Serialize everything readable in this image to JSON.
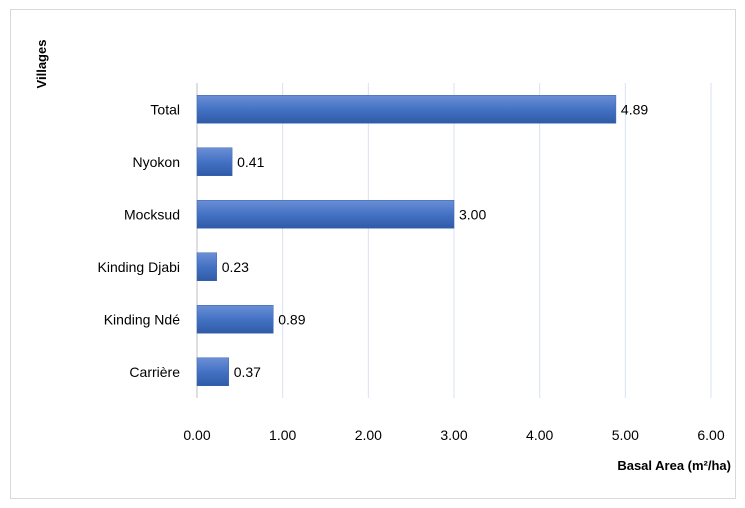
{
  "chart_data": {
    "type": "bar",
    "orientation": "horizontal",
    "categories": [
      "Total",
      "Nyokon",
      "Mocksud",
      "Kinding Djabi",
      "Kinding Ndé",
      "Carrière"
    ],
    "values": [
      4.89,
      0.41,
      3.0,
      0.23,
      0.89,
      0.37
    ],
    "value_labels": [
      "4.89",
      "0.41",
      "3.00",
      "0.23",
      "0.89",
      "0.37"
    ],
    "x_ticks": [
      "0.00",
      "1.00",
      "2.00",
      "3.00",
      "4.00",
      "5.00",
      "6.00"
    ],
    "xlim": [
      0,
      6
    ],
    "xlabel": "Basal Area (m²/ha)",
    "ylabel": "Villages",
    "bar_color": "#4472c4",
    "grid": "vertical",
    "legend": "none"
  }
}
